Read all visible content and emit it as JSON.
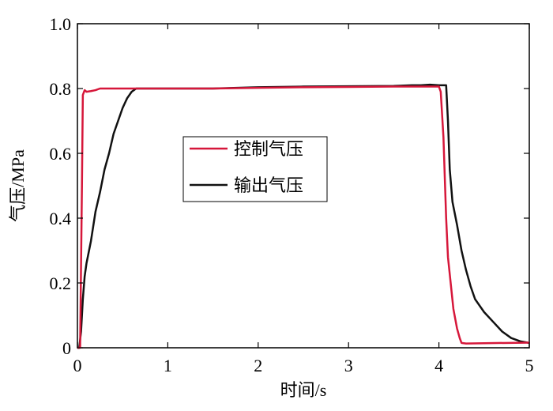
{
  "chart_data": {
    "type": "line",
    "xlabel": "时间/s",
    "ylabel": "气压/MPa",
    "xlim": [
      0,
      5
    ],
    "ylim": [
      0,
      1.0
    ],
    "x_ticks": [
      0,
      1,
      2,
      3,
      4,
      5
    ],
    "y_ticks": [
      0,
      0.2,
      0.4,
      0.6,
      0.8,
      1.0
    ],
    "x_tick_labels": [
      "0",
      "1",
      "2",
      "3",
      "4",
      "5"
    ],
    "y_tick_labels": [
      "0",
      "0.2",
      "0.4",
      "0.6",
      "0.8",
      "1.0"
    ],
    "grid": false,
    "legend_position": "center-left",
    "series": [
      {
        "name": "控制气压",
        "color": "#d6173a",
        "x": [
          0,
          0.03,
          0.05,
          0.06,
          0.08,
          0.1,
          0.15,
          0.2,
          0.25,
          0.3,
          0.5,
          1.0,
          1.5,
          2.0,
          2.5,
          3.0,
          3.5,
          3.8,
          4.0,
          4.02,
          4.05,
          4.08,
          4.1,
          4.13,
          4.16,
          4.2,
          4.23,
          4.25,
          4.3,
          4.5,
          5.0
        ],
        "y": [
          0,
          0.0,
          0.5,
          0.78,
          0.795,
          0.79,
          0.792,
          0.795,
          0.8,
          0.8,
          0.8,
          0.8,
          0.8,
          0.802,
          0.804,
          0.805,
          0.806,
          0.806,
          0.806,
          0.79,
          0.65,
          0.4,
          0.28,
          0.2,
          0.12,
          0.06,
          0.03,
          0.015,
          0.013,
          0.014,
          0.016
        ]
      },
      {
        "name": "输出气压",
        "color": "#111111",
        "x": [
          0,
          0.02,
          0.04,
          0.06,
          0.08,
          0.1,
          0.15,
          0.2,
          0.25,
          0.3,
          0.35,
          0.4,
          0.45,
          0.5,
          0.55,
          0.6,
          0.65,
          0.7,
          0.8,
          1.0,
          1.5,
          2.0,
          2.5,
          3.0,
          3.5,
          3.7,
          3.8,
          3.9,
          4.0,
          4.05,
          4.08,
          4.1,
          4.12,
          4.15,
          4.2,
          4.25,
          4.3,
          4.35,
          4.4,
          4.5,
          4.6,
          4.7,
          4.8,
          4.9,
          5.0
        ],
        "y": [
          0,
          0.0,
          0.05,
          0.15,
          0.22,
          0.26,
          0.33,
          0.42,
          0.48,
          0.55,
          0.6,
          0.66,
          0.7,
          0.74,
          0.77,
          0.79,
          0.8,
          0.8,
          0.8,
          0.8,
          0.8,
          0.804,
          0.806,
          0.807,
          0.808,
          0.81,
          0.81,
          0.812,
          0.81,
          0.81,
          0.81,
          0.7,
          0.55,
          0.45,
          0.38,
          0.3,
          0.24,
          0.19,
          0.15,
          0.11,
          0.08,
          0.05,
          0.03,
          0.02,
          0.015
        ]
      }
    ]
  }
}
